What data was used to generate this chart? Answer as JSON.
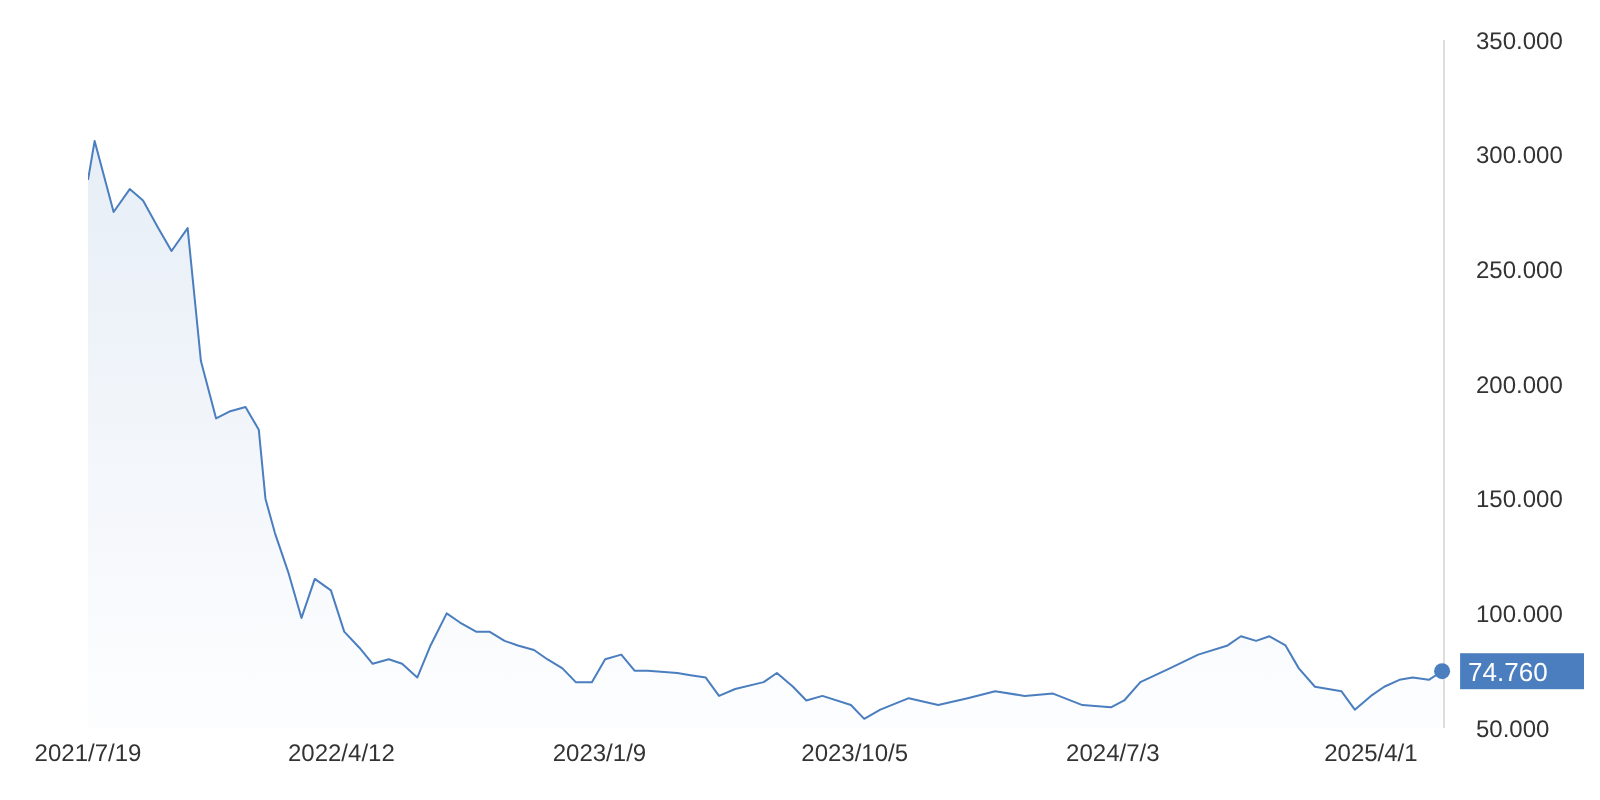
{
  "chart_data": {
    "type": "area",
    "color": "#4a7ebf",
    "x": [
      "2021-07-19",
      "2021-07-26",
      "2021-08-15",
      "2021-09-01",
      "2021-09-15",
      "2021-10-01",
      "2021-10-15",
      "2021-11-01",
      "2021-11-15",
      "2021-12-01",
      "2021-12-15",
      "2022-01-01",
      "2022-01-15",
      "2022-01-22",
      "2022-02-01",
      "2022-02-15",
      "2022-03-01",
      "2022-03-15",
      "2022-04-01",
      "2022-04-15",
      "2022-05-01",
      "2022-05-15",
      "2022-06-01",
      "2022-06-15",
      "2022-07-01",
      "2022-07-15",
      "2022-08-01",
      "2022-08-15",
      "2022-09-01",
      "2022-09-15",
      "2022-10-01",
      "2022-10-15",
      "2022-11-01",
      "2022-11-15",
      "2022-12-01",
      "2022-12-15",
      "2023-01-01",
      "2023-01-15",
      "2023-02-01",
      "2023-02-15",
      "2023-03-01",
      "2023-04-01",
      "2023-04-15",
      "2023-05-01",
      "2023-05-15",
      "2023-06-01",
      "2023-07-01",
      "2023-07-15",
      "2023-08-01",
      "2023-08-15",
      "2023-09-01",
      "2023-10-01",
      "2023-10-15",
      "2023-11-01",
      "2023-12-01",
      "2024-01-01",
      "2024-02-01",
      "2024-03-01",
      "2024-04-01",
      "2024-05-01",
      "2024-06-01",
      "2024-07-01",
      "2024-07-15",
      "2024-08-01",
      "2024-09-01",
      "2024-10-01",
      "2024-11-01",
      "2024-11-15",
      "2024-12-01",
      "2024-12-15",
      "2025-01-01",
      "2025-01-15",
      "2025-02-01",
      "2025-02-15",
      "2025-03-01",
      "2025-03-15",
      "2025-04-01",
      "2025-04-15",
      "2025-05-01",
      "2025-05-15",
      "2025-06-01",
      "2025-06-15"
    ],
    "values": [
      289,
      306,
      275,
      285,
      280,
      268,
      258,
      268,
      210,
      185,
      188,
      190,
      180,
      150,
      135,
      118,
      98,
      115,
      110,
      92,
      85,
      78,
      80,
      78,
      72,
      86,
      100,
      96,
      92,
      92,
      88,
      86,
      84,
      80,
      76,
      70,
      70,
      80,
      82,
      75,
      75,
      74,
      73,
      72,
      64,
      67,
      70,
      74,
      68,
      62,
      64,
      60,
      54,
      58,
      63,
      60,
      63,
      66,
      64,
      65,
      60,
      59,
      62,
      70,
      76,
      82,
      86,
      90,
      88,
      90,
      86,
      76,
      68,
      67,
      66,
      58,
      64,
      68,
      71,
      72,
      71,
      74.76
    ],
    "xlim": [
      "2021-07-19",
      "2025-06-17"
    ],
    "xticks": [
      {
        "value": "2021-07-19",
        "label": "2021/7/19"
      },
      {
        "value": "2022-04-12",
        "label": "2022/4/12"
      },
      {
        "value": "2023-01-09",
        "label": "2023/1/9"
      },
      {
        "value": "2023-10-05",
        "label": "2023/10/5"
      },
      {
        "value": "2024-07-03",
        "label": "2024/7/3"
      },
      {
        "value": "2025-04-01",
        "label": "2025/4/1"
      }
    ],
    "ylim": [
      50,
      350
    ],
    "yticks": [
      {
        "value": 50,
        "label": "50.000"
      },
      {
        "value": 100,
        "label": "100.000"
      },
      {
        "value": 150,
        "label": "150.000"
      },
      {
        "value": 200,
        "label": "200.000"
      },
      {
        "value": 250,
        "label": "250.000"
      },
      {
        "value": 300,
        "label": "300.000"
      },
      {
        "value": 350,
        "label": "350.000"
      }
    ],
    "annotations": [
      {
        "text": "74.760",
        "x": "2025-06-15",
        "y": 74.76
      }
    ],
    "grid": false,
    "legend": false,
    "marker": "none",
    "line_style": "solid"
  }
}
